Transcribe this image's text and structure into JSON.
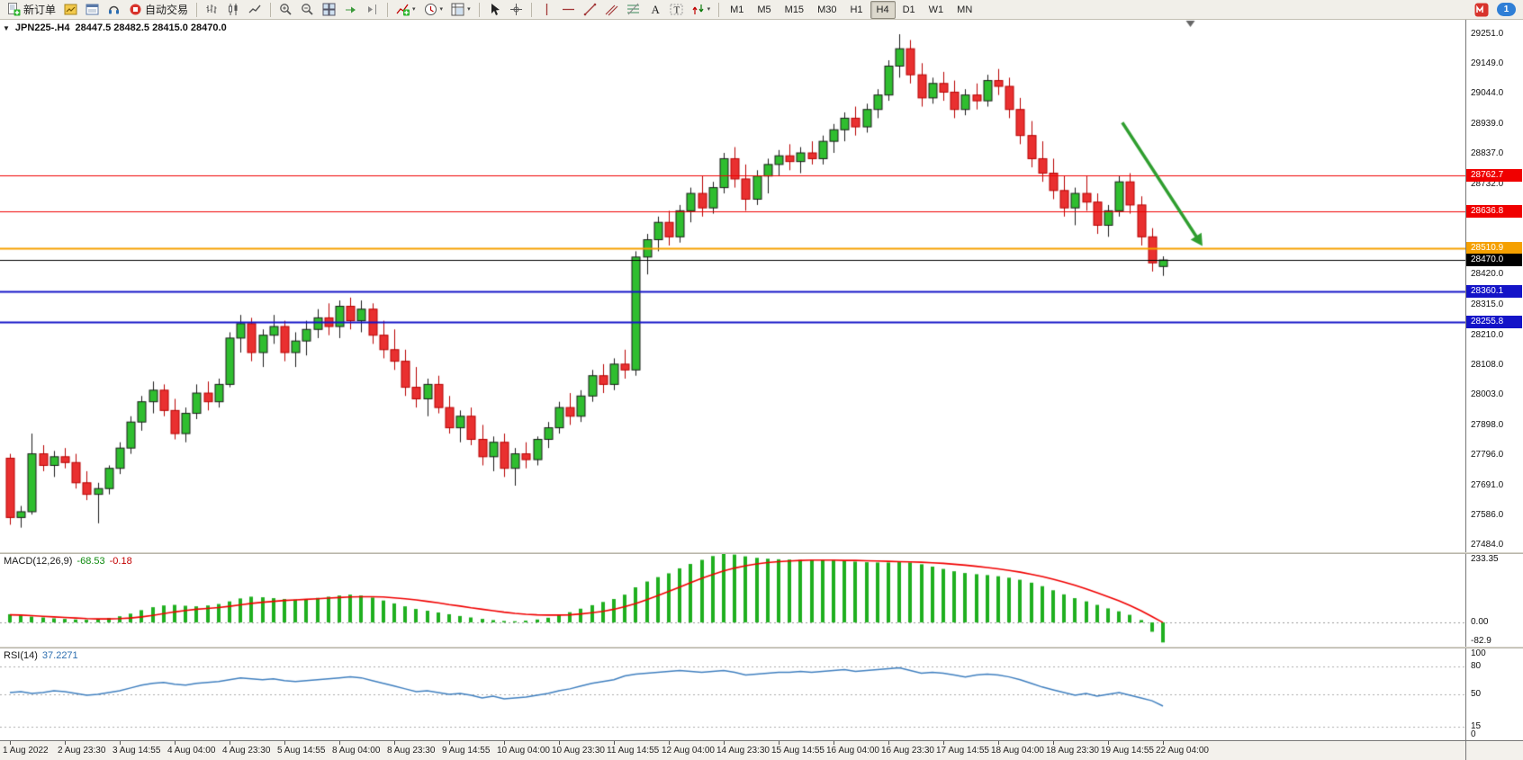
{
  "toolbar": {
    "new_order_label": "新订单",
    "autotrading_label": "自动交易",
    "timeframes": [
      "M1",
      "M5",
      "M15",
      "M30",
      "H1",
      "H4",
      "D1",
      "W1",
      "MN"
    ],
    "active_timeframe": "H4",
    "notification_count": "1"
  },
  "icons": {
    "one_click_arrow": "▼",
    "dropdown_caret": "▾"
  },
  "chart": {
    "symbol_period": "JPN225-.H4",
    "ohlc_text": "28447.5 28482.5 28415.0 28470.0",
    "macd": {
      "name": "MACD(12,26,9)",
      "main_value": "-68.53",
      "signal_value": "-0.18"
    },
    "rsi": {
      "name": "RSI(14)",
      "value": "37.2271"
    }
  },
  "chart_data": [
    {
      "type": "candlestick",
      "title": "JPN225- H4 candles",
      "ylim": [
        27460,
        29300
      ],
      "x_label_step": 5,
      "x_labels": [
        "1 Aug 2022",
        "2 Aug 23:30",
        "3 Aug 14:55",
        "4 Aug 04:00",
        "4 Aug 23:30",
        "5 Aug 14:55",
        "8 Aug 04:00",
        "8 Aug 23:30",
        "9 Aug 14:55",
        "10 Aug 04:00",
        "10 Aug 23:30",
        "11 Aug 14:55",
        "12 Aug 04:00",
        "14 Aug 23:30",
        "15 Aug 14:55",
        "16 Aug 04:00",
        "16 Aug 23:30",
        "17 Aug 14:55",
        "18 Aug 04:00",
        "18 Aug 23:30",
        "19 Aug 14:55",
        "22 Aug 04:00"
      ],
      "y_ticks": [
        "29251.0",
        "29149.0",
        "29044.0",
        "28939.0",
        "28837.0",
        "28732.0",
        "28420.0",
        "28315.0",
        "28210.0",
        "28108.0",
        "28003.0",
        "27898.0",
        "27796.0",
        "27691.0",
        "27586.0",
        "27484.0"
      ],
      "levels": [
        {
          "price": 28762.7,
          "label": "28762.7",
          "color": "#f00000",
          "width": 1
        },
        {
          "price": 28636.8,
          "label": "28636.8",
          "color": "#f00000",
          "width": 1
        },
        {
          "price": 28510.9,
          "label": "28510.9",
          "color": "#f5a000",
          "width": 2
        },
        {
          "price": 28360.1,
          "label": "28360.1",
          "color": "#1414c8",
          "width": 2
        },
        {
          "price": 28255.8,
          "label": "28255.8",
          "color": "#1414c8",
          "width": 2
        }
      ],
      "current_price": {
        "price": 28470.0,
        "label": "28470.0",
        "color": "#000000"
      },
      "colors": {
        "up_fill": "#2fbe2f",
        "down_fill": "#e93030",
        "up_line": "#1a1a1a",
        "down_line": "#b80000"
      },
      "arrow": {
        "from_index": 101.3,
        "from_price": 28945,
        "to_index": 108.6,
        "to_price": 28518,
        "color": "#2f9e2f"
      },
      "candles": [
        [
          27785,
          27800,
          27555,
          27580
        ],
        [
          27580,
          27620,
          27545,
          27600
        ],
        [
          27600,
          27870,
          27590,
          27800
        ],
        [
          27800,
          27830,
          27740,
          27760
        ],
        [
          27760,
          27810,
          27720,
          27790
        ],
        [
          27790,
          27820,
          27750,
          27770
        ],
        [
          27770,
          27800,
          27680,
          27700
        ],
        [
          27700,
          27740,
          27640,
          27660
        ],
        [
          27660,
          27700,
          27560,
          27680
        ],
        [
          27680,
          27760,
          27660,
          27750
        ],
        [
          27750,
          27840,
          27730,
          27820
        ],
        [
          27820,
          27930,
          27800,
          27910
        ],
        [
          27910,
          28000,
          27880,
          27980
        ],
        [
          27980,
          28050,
          27940,
          28020
        ],
        [
          28020,
          28040,
          27930,
          27950
        ],
        [
          27950,
          27990,
          27850,
          27870
        ],
        [
          27870,
          27960,
          27840,
          27940
        ],
        [
          27940,
          28040,
          27920,
          28010
        ],
        [
          28010,
          28050,
          27950,
          27980
        ],
        [
          27980,
          28060,
          27960,
          28040
        ],
        [
          28040,
          28220,
          28030,
          28200
        ],
        [
          28200,
          28280,
          28150,
          28250
        ],
        [
          28250,
          28270,
          28120,
          28150
        ],
        [
          28150,
          28230,
          28100,
          28210
        ],
        [
          28210,
          28280,
          28180,
          28240
        ],
        [
          28240,
          28260,
          28120,
          28150
        ],
        [
          28150,
          28220,
          28100,
          28190
        ],
        [
          28190,
          28260,
          28140,
          28230
        ],
        [
          28230,
          28300,
          28200,
          28270
        ],
        [
          28270,
          28320,
          28210,
          28240
        ],
        [
          28240,
          28330,
          28200,
          28310
        ],
        [
          28310,
          28340,
          28230,
          28260
        ],
        [
          28260,
          28330,
          28220,
          28300
        ],
        [
          28300,
          28320,
          28180,
          28210
        ],
        [
          28210,
          28260,
          28130,
          28160
        ],
        [
          28160,
          28230,
          28090,
          28120
        ],
        [
          28120,
          28160,
          28000,
          28030
        ],
        [
          28030,
          28100,
          27960,
          27990
        ],
        [
          27990,
          28060,
          27930,
          28040
        ],
        [
          28040,
          28070,
          27940,
          27960
        ],
        [
          27960,
          28000,
          27870,
          27890
        ],
        [
          27890,
          27950,
          27840,
          27930
        ],
        [
          27930,
          27960,
          27830,
          27850
        ],
        [
          27850,
          27900,
          27760,
          27790
        ],
        [
          27790,
          27860,
          27740,
          27840
        ],
        [
          27840,
          27870,
          27720,
          27750
        ],
        [
          27750,
          27820,
          27690,
          27800
        ],
        [
          27800,
          27840,
          27750,
          27780
        ],
        [
          27780,
          27860,
          27760,
          27850
        ],
        [
          27850,
          27910,
          27820,
          27890
        ],
        [
          27890,
          27980,
          27870,
          27960
        ],
        [
          27960,
          28010,
          27900,
          27930
        ],
        [
          27930,
          28020,
          27910,
          28000
        ],
        [
          28000,
          28090,
          27980,
          28070
        ],
        [
          28070,
          28110,
          28010,
          28040
        ],
        [
          28040,
          28130,
          28020,
          28110
        ],
        [
          28110,
          28160,
          28060,
          28090
        ],
        [
          28090,
          28500,
          28070,
          28480
        ],
        [
          28480,
          28560,
          28420,
          28540
        ],
        [
          28540,
          28620,
          28500,
          28600
        ],
        [
          28600,
          28640,
          28520,
          28550
        ],
        [
          28550,
          28660,
          28530,
          28640
        ],
        [
          28640,
          28720,
          28600,
          28700
        ],
        [
          28700,
          28760,
          28620,
          28650
        ],
        [
          28650,
          28740,
          28630,
          28720
        ],
        [
          28720,
          28840,
          28700,
          28820
        ],
        [
          28820,
          28860,
          28720,
          28750
        ],
        [
          28750,
          28800,
          28640,
          28680
        ],
        [
          28680,
          28780,
          28660,
          28760
        ],
        [
          28760,
          28820,
          28700,
          28800
        ],
        [
          28800,
          28850,
          28760,
          28830
        ],
        [
          28830,
          28870,
          28780,
          28810
        ],
        [
          28810,
          28860,
          28770,
          28840
        ],
        [
          28840,
          28880,
          28800,
          28820
        ],
        [
          28820,
          28900,
          28800,
          28880
        ],
        [
          28880,
          28940,
          28840,
          28920
        ],
        [
          28920,
          28980,
          28880,
          28960
        ],
        [
          28960,
          29000,
          28900,
          28930
        ],
        [
          28930,
          29010,
          28910,
          28990
        ],
        [
          28990,
          29060,
          28960,
          29040
        ],
        [
          29040,
          29160,
          29020,
          29140
        ],
        [
          29140,
          29250,
          29100,
          29200
        ],
        [
          29200,
          29230,
          29080,
          29110
        ],
        [
          29110,
          29150,
          29000,
          29030
        ],
        [
          29030,
          29100,
          29010,
          29080
        ],
        [
          29080,
          29120,
          29020,
          29050
        ],
        [
          29050,
          29090,
          28960,
          28990
        ],
        [
          28990,
          29060,
          28970,
          29040
        ],
        [
          29040,
          29080,
          28990,
          29020
        ],
        [
          29020,
          29110,
          29000,
          29090
        ],
        [
          29090,
          29130,
          29040,
          29070
        ],
        [
          29070,
          29100,
          28960,
          28990
        ],
        [
          28990,
          29030,
          28870,
          28900
        ],
        [
          28900,
          28950,
          28790,
          28820
        ],
        [
          28820,
          28880,
          28740,
          28770
        ],
        [
          28770,
          28820,
          28680,
          28710
        ],
        [
          28710,
          28760,
          28620,
          28650
        ],
        [
          28650,
          28720,
          28590,
          28700
        ],
        [
          28700,
          28760,
          28640,
          28670
        ],
        [
          28670,
          28700,
          28560,
          28590
        ],
        [
          28590,
          28660,
          28550,
          28640
        ],
        [
          28640,
          28760,
          28620,
          28740
        ],
        [
          28740,
          28770,
          28630,
          28660
        ],
        [
          28660,
          28690,
          28520,
          28550
        ],
        [
          28550,
          28580,
          28430,
          28460
        ],
        [
          28447.5,
          28482.5,
          28415,
          28470
        ]
      ]
    },
    {
      "type": "bar",
      "name": "MACD(12,26,9)",
      "ylim": [
        -83,
        234
      ],
      "y_ticks": [
        {
          "v": 233.35,
          "label": "233.35"
        },
        {
          "v": 0,
          "label": "0.00"
        },
        {
          "v": -82.9,
          "label": "-82.9"
        }
      ],
      "histogram_color": "#1faf1f",
      "signal_color": "#f00000",
      "values": [
        28,
        24,
        20,
        17,
        14,
        12,
        10,
        9,
        11,
        15,
        21,
        30,
        42,
        52,
        58,
        60,
        57,
        55,
        58,
        63,
        72,
        82,
        88,
        86,
        83,
        80,
        78,
        80,
        84,
        88,
        92,
        95,
        92,
        85,
        75,
        65,
        55,
        46,
        40,
        34,
        28,
        22,
        17,
        12,
        8,
        5,
        4,
        6,
        10,
        16,
        25,
        35,
        47,
        59,
        70,
        80,
        95,
        120,
        140,
        155,
        168,
        185,
        200,
        214,
        227,
        234,
        232,
        226,
        221,
        218,
        216,
        215,
        214,
        214,
        213,
        212,
        210,
        208,
        206,
        205,
        205,
        206,
        205,
        199,
        191,
        183,
        175,
        169,
        165,
        162,
        158,
        153,
        146,
        136,
        124,
        110,
        96,
        83,
        72,
        60,
        48,
        38,
        26,
        8,
        -32,
        -68.53
      ],
      "signal": [
        26,
        25,
        23,
        21,
        19,
        17,
        15,
        13,
        12,
        12,
        13,
        15,
        19,
        24,
        30,
        36,
        41,
        45,
        48,
        51,
        55,
        60,
        65,
        69,
        72,
        75,
        77,
        79,
        81,
        83,
        85,
        87,
        88,
        88,
        87,
        84,
        81,
        77,
        72,
        67,
        61,
        56,
        50,
        45,
        40,
        35,
        31,
        28,
        26,
        25,
        25,
        26,
        29,
        33,
        38,
        45,
        54,
        65,
        78,
        92,
        106,
        121,
        136,
        151,
        164,
        176,
        186,
        194,
        200,
        205,
        208,
        210,
        212,
        213,
        213,
        213,
        212,
        212,
        211,
        210,
        209,
        208,
        207,
        206,
        204,
        202,
        199,
        196,
        192,
        188,
        183,
        178,
        172,
        165,
        157,
        148,
        138,
        127,
        115,
        102,
        88,
        74,
        58,
        40,
        20,
        -0.18
      ]
    },
    {
      "type": "line",
      "name": "RSI(14)",
      "ylim": [
        0,
        100
      ],
      "y_ticks": [
        {
          "v": 100,
          "label": "100"
        },
        {
          "v": 80,
          "label": "80"
        },
        {
          "v": 50,
          "label": "50"
        },
        {
          "v": 15,
          "label": "15"
        },
        {
          "v": 0,
          "label": "0"
        }
      ],
      "levels": [
        80,
        50,
        15
      ],
      "color": "#3f7fbf",
      "values": [
        52,
        53,
        51,
        52,
        54,
        53,
        51,
        49,
        50,
        52,
        54,
        57,
        60,
        62,
        63,
        61,
        60,
        62,
        63,
        64,
        66,
        68,
        67,
        66,
        67,
        65,
        64,
        65,
        66,
        67,
        68,
        69,
        68,
        65,
        62,
        59,
        56,
        53,
        54,
        52,
        50,
        51,
        49,
        46,
        48,
        45,
        46,
        47,
        49,
        51,
        54,
        56,
        59,
        62,
        64,
        66,
        70,
        72,
        73,
        74,
        75,
        76,
        75,
        74,
        75,
        76,
        74,
        71,
        72,
        73,
        74,
        74,
        75,
        74,
        75,
        76,
        77,
        75,
        76,
        77,
        78,
        79,
        76,
        73,
        74,
        73,
        71,
        69,
        71,
        72,
        71,
        69,
        66,
        62,
        58,
        55,
        52,
        49,
        51,
        48,
        50,
        52,
        49,
        46,
        43,
        37.23
      ]
    }
  ]
}
